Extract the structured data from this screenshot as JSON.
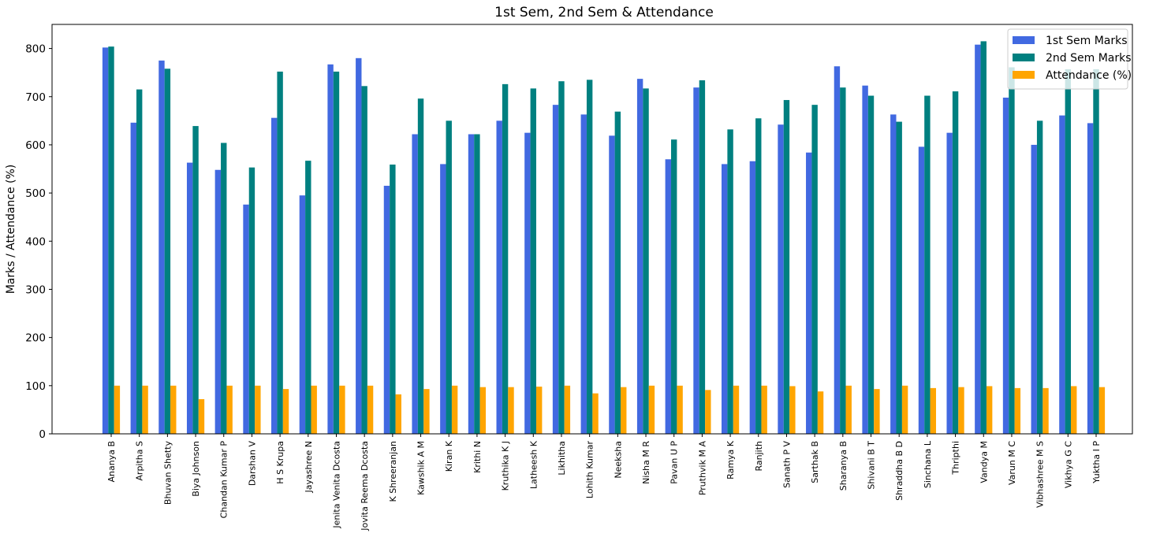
{
  "chart_data": {
    "type": "bar",
    "title": "1st Sem, 2nd Sem & Attendance",
    "xlabel": "",
    "ylabel": "Marks / Attendance (%)",
    "ylim": [
      0,
      850
    ],
    "yticks": [
      0,
      100,
      200,
      300,
      400,
      500,
      600,
      700,
      800
    ],
    "grid": false,
    "legend_position": "top-right",
    "categories": [
      "Ananya B",
      "Arpitha S",
      "Bhuvan Shetty",
      "Biya Johnson",
      "Chandan Kumar P",
      "Darshan V",
      "H S Krupa",
      "Jayashree N",
      "Jenita Venita Dcosta",
      "Jovita Reema Dcosta",
      "K Shreeranjan",
      "Kawshik A M",
      "Kiran K",
      "Krithi N",
      "Kruthika K J",
      "Latheesh K",
      "Likhitha",
      "Lohith Kumar",
      "Neeksha",
      "Nisha M R",
      "Pavan U P",
      "Pruthvik M A",
      "Ramya K",
      "Ranjith",
      "Sanath P V",
      "Sarthak B",
      "Sharanya B",
      "Shivani B T",
      "Shraddha B D",
      "Sinchana L",
      "Thripthi",
      "Vandya M",
      "Varun M C",
      "Vibhashree M S",
      "Vikhya G C",
      "Yuktha I P"
    ],
    "series": [
      {
        "name": "1st Sem Marks",
        "color": "#4169E1",
        "values": [
          802,
          646,
          775,
          563,
          548,
          476,
          656,
          495,
          767,
          780,
          515,
          622,
          560,
          622,
          650,
          625,
          683,
          663,
          619,
          737,
          570,
          719,
          560,
          566,
          642,
          584,
          763,
          723,
          663,
          596,
          625,
          808,
          698,
          600,
          661,
          645
        ]
      },
      {
        "name": "2nd Sem Marks",
        "color": "#008080",
        "values": [
          804,
          715,
          758,
          639,
          604,
          553,
          752,
          567,
          752,
          722,
          559,
          696,
          650,
          622,
          726,
          717,
          732,
          735,
          669,
          717,
          611,
          734,
          632,
          655,
          693,
          683,
          719,
          702,
          648,
          702,
          711,
          815,
          761,
          650,
          757,
          757
        ]
      },
      {
        "name": "Attendance (%)",
        "color": "#FFA500",
        "values": [
          100,
          100,
          100,
          72,
          100,
          100,
          93,
          100,
          100,
          100,
          82,
          93,
          100,
          97,
          97,
          98,
          100,
          84,
          97,
          100,
          100,
          91,
          100,
          100,
          99,
          88,
          100,
          93,
          100,
          95,
          97,
          99,
          95,
          95,
          99,
          97
        ]
      }
    ]
  }
}
